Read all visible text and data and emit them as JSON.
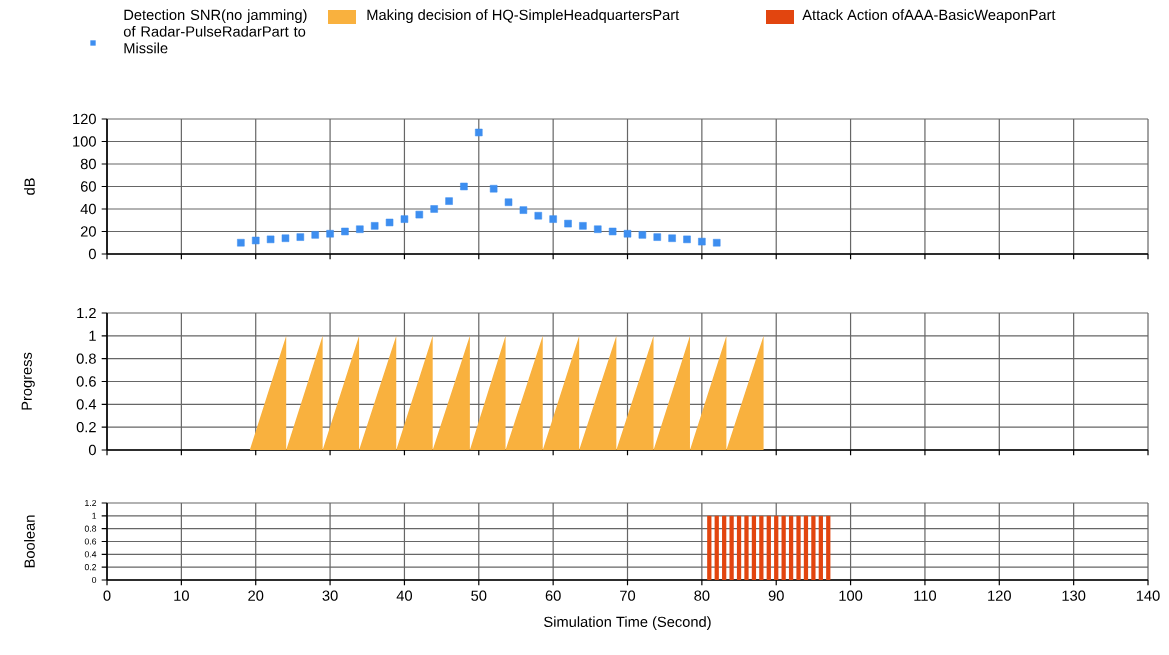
{
  "chart_data": [
    {
      "type": "scatter",
      "marker": "square",
      "ylabel": "dB",
      "grid": true,
      "legend": "top",
      "tick_labels": "y",
      "x": [
        18,
        20,
        22,
        24,
        26,
        28,
        30,
        32,
        34,
        36,
        38,
        40,
        42,
        44,
        46,
        48,
        50,
        52,
        54,
        56,
        58,
        60,
        62,
        64,
        66,
        68,
        70,
        72,
        74,
        76,
        78,
        80,
        82
      ],
      "series": [
        {
          "name": "Detection SNR(no jamming) of Radar-PulseRadarPart to Missile",
          "color": "#3d8ef0",
          "values": [
            10,
            12,
            13,
            14,
            15,
            17,
            18,
            20,
            22,
            25,
            28,
            31,
            35,
            40,
            47,
            60,
            108,
            58,
            46,
            39,
            34,
            31,
            27,
            25,
            22,
            20,
            18,
            17,
            15,
            14,
            13,
            11,
            10
          ]
        }
      ],
      "xlim": [
        0,
        140
      ],
      "xticks": [
        0,
        10,
        20,
        30,
        40,
        50,
        60,
        70,
        80,
        90,
        100,
        110,
        120,
        130,
        140
      ],
      "ylim": [
        0,
        120
      ],
      "yticks": [
        0,
        20,
        40,
        60,
        80,
        100,
        120
      ]
    },
    {
      "type": "area",
      "ylabel": "Progress",
      "grid": true,
      "legend": "top",
      "tick_labels": "y",
      "x": [
        19.2,
        24.1,
        24.1,
        29.0,
        29.0,
        33.9,
        33.9,
        38.9,
        38.9,
        43.8,
        43.8,
        48.8,
        48.8,
        53.6,
        53.6,
        58.6,
        58.6,
        63.5,
        63.5,
        68.5,
        68.5,
        73.5,
        73.5,
        78.4,
        78.4,
        83.3,
        83.3,
        88.3,
        88.3
      ],
      "series": [
        {
          "name": "Making decision of HQ-SimpleHeadquartersPart",
          "color": "#f9b13e",
          "values": [
            0,
            1,
            0,
            1,
            0,
            1,
            0,
            1,
            0,
            1,
            0,
            1,
            0,
            1,
            0,
            1,
            0,
            1,
            0,
            1,
            0,
            1,
            0,
            1,
            0,
            1,
            0,
            1,
            0
          ]
        }
      ],
      "xlim": [
        0,
        140
      ],
      "xticks": [
        0,
        10,
        20,
        30,
        40,
        50,
        60,
        70,
        80,
        90,
        100,
        110,
        120,
        130,
        140
      ],
      "ylim": [
        0,
        1.2
      ],
      "yticks": [
        0,
        0.2,
        0.4,
        0.6,
        0.8,
        1,
        1.2
      ]
    },
    {
      "type": "bar",
      "ylabel": "Boolean",
      "xlabel": "Simulation Time (Second)",
      "grid": true,
      "legend": "top",
      "x": [
        81,
        82,
        83,
        84,
        85,
        86,
        87,
        88,
        89,
        90,
        91,
        92,
        93,
        94,
        95,
        96,
        97
      ],
      "series": [
        {
          "name": "Attack Action ofAAA-BasicWeaponPart",
          "color": "#e2450f",
          "values": [
            1,
            1,
            1,
            1,
            1,
            1,
            1,
            1,
            1,
            1,
            1,
            1,
            1,
            1,
            1,
            1,
            1
          ]
        }
      ],
      "xlim": [
        0,
        140
      ],
      "xticks": [
        0,
        10,
        20,
        30,
        40,
        50,
        60,
        70,
        80,
        90,
        100,
        110,
        120,
        130,
        140
      ],
      "ylim": [
        0,
        1.2
      ],
      "yticks": [
        0,
        0.2,
        0.4,
        0.6,
        0.8,
        1,
        1.2
      ]
    }
  ]
}
